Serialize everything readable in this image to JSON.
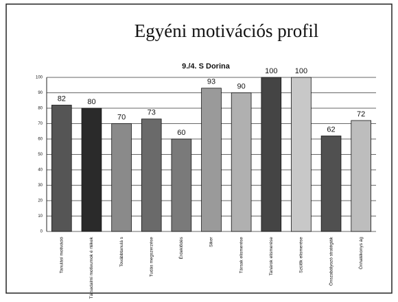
{
  "chart_data": {
    "type": "bar",
    "title": "Egyéni motivációs profil",
    "subtitle": "9./4. S Dorina",
    "categories": [
      "Tanulási motiváció",
      "Társadalmi motivumok é rtékek",
      "Továbbtanulá s",
      "Tudás megszerzése",
      "Érdeklődés",
      "Siker",
      "Társak elismerése",
      "Tanárok elismerése",
      "Szülők elismerése",
      "Önszabályozó stratégiák",
      "Önhatékonys ág"
    ],
    "values": [
      82,
      80,
      70,
      73,
      60,
      93,
      90,
      100,
      100,
      62,
      72
    ],
    "colors": [
      "#555555",
      "#2a2a2a",
      "#8a8a8a",
      "#6a6a6a",
      "#7a7a7a",
      "#9a9a9a",
      "#b0b0b0",
      "#444444",
      "#c8c8c8",
      "#505050",
      "#bdbdbd"
    ],
    "ylim": [
      0,
      100
    ],
    "yticks": [
      0,
      10,
      20,
      30,
      40,
      50,
      60,
      70,
      80,
      90,
      100
    ],
    "grid": true
  }
}
